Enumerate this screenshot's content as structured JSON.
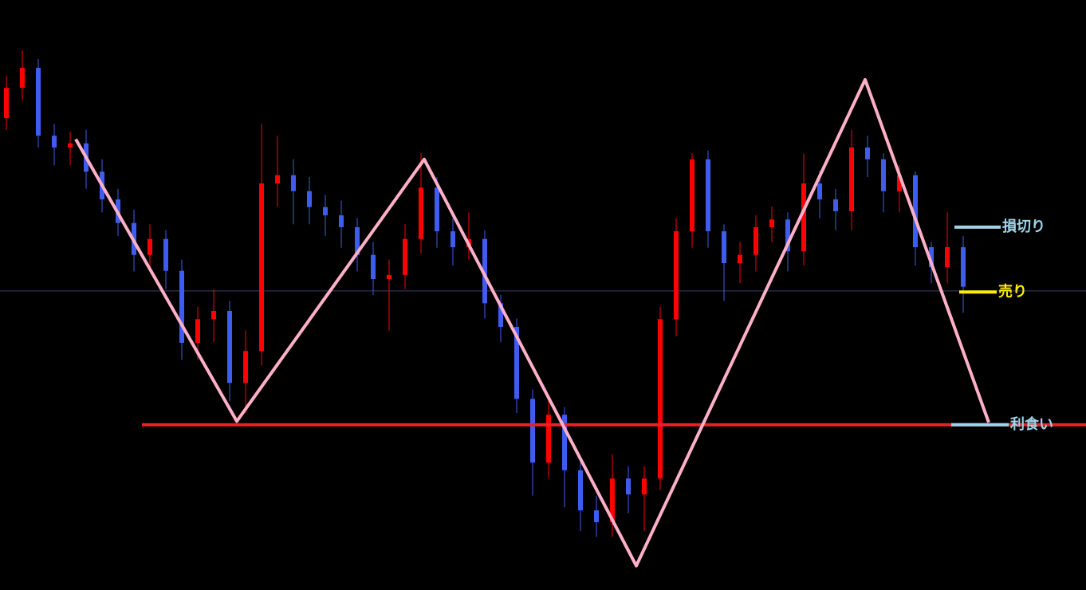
{
  "chart_data": {
    "type": "candlestick",
    "xlim": [
      -0.4,
      67.7
    ],
    "ylim": [
      0,
      100
    ],
    "up_color": "#ff0000",
    "down_color": "#3e5cf0",
    "open": [
      80,
      85.1,
      88.5,
      77.0,
      75.0,
      75.7,
      70.9,
      66.2,
      62.2,
      56.8,
      59.5,
      54.1,
      41.9,
      45.9,
      47.3,
      35.1,
      40.5,
      68.9,
      70.3,
      67.6,
      64.9,
      63.5,
      61.5,
      56.8,
      52.7,
      53.4,
      59.5,
      68.2,
      60.8,
      58.1,
      59.5,
      48.6,
      44.6,
      32.4,
      21.6,
      29.7,
      20.3,
      13.5,
      11.5,
      18.9,
      16.2,
      18.9,
      45.9,
      60.8,
      73.0,
      60.8,
      55.4,
      56.8,
      61.5,
      62.8,
      57.4,
      68.9,
      66.2,
      64.2,
      75.0,
      73.0,
      67.6,
      70.3,
      58.1,
      54.7,
      58.1
    ],
    "high": [
      87.1,
      91.5,
      90,
      79,
      77.7,
      78,
      73,
      68,
      64.5,
      62,
      61,
      56,
      48,
      51,
      49,
      44,
      79,
      77,
      73,
      70,
      67,
      66,
      63,
      59,
      56,
      62,
      74,
      70,
      63,
      64,
      61,
      50,
      46,
      34,
      33,
      31,
      22,
      16,
      23,
      21,
      21,
      48,
      63,
      74,
      74.5,
      62,
      59,
      63.5,
      65,
      64,
      74,
      71,
      68,
      78,
      77,
      74,
      72,
      71,
      59,
      64,
      60
    ],
    "low": [
      78,
      83,
      75,
      72,
      72,
      68,
      64,
      60,
      54,
      54,
      51,
      39,
      39,
      42,
      32,
      30,
      38,
      65,
      62,
      62,
      60,
      58,
      54,
      50,
      44,
      51,
      57,
      58,
      55,
      56,
      46,
      42,
      30,
      16,
      19,
      14,
      10,
      9,
      9,
      13,
      10,
      17,
      43,
      58,
      58,
      49,
      52,
      54,
      59,
      54,
      55,
      63,
      61,
      61,
      70,
      64,
      64,
      55,
      52,
      52,
      47
    ],
    "close": [
      85.1,
      88.5,
      77.0,
      75.0,
      75.7,
      70.9,
      66.2,
      62.2,
      56.8,
      59.5,
      54.1,
      41.9,
      45.9,
      47.3,
      35.1,
      40.5,
      68.9,
      70.3,
      67.6,
      64.9,
      63.5,
      61.5,
      56.8,
      52.7,
      53.4,
      59.5,
      68.2,
      60.8,
      58.1,
      59.5,
      48.6,
      44.6,
      32.4,
      21.6,
      29.7,
      20.3,
      13.5,
      11.5,
      18.9,
      16.2,
      18.9,
      45.9,
      60.8,
      73.0,
      60.8,
      55.4,
      56.8,
      61.5,
      62.8,
      57.4,
      68.9,
      66.2,
      64.2,
      75.0,
      73.0,
      67.6,
      70.3,
      58.1,
      54.7,
      58.1,
      51.4
    ],
    "current_price": 50.7,
    "current_price_color": "#3a3f6e",
    "support": {
      "value": 28.0,
      "start": 8.5,
      "color": "#e8202a"
    },
    "zigzag": {
      "color": "#ffb0c8",
      "x": [
        4.35,
        14.45,
        26.2,
        39.5,
        53.85,
        61.6
      ],
      "values": [
        76.4,
        28.6,
        73.0,
        4.1,
        86.5,
        28.4
      ]
    },
    "levels": [
      {
        "label": "損切り",
        "value": 61.5,
        "color": "#9fd3e8",
        "start": 59.45,
        "end": 62.35
      },
      {
        "label": "売り",
        "value": 50.5,
        "color": "#ffee00",
        "start": 59.75,
        "end": 62.1
      },
      {
        "label": "利食い",
        "value": 28.0,
        "color": "#9fd3e8",
        "start": 59.25,
        "end": 62.85
      }
    ]
  }
}
